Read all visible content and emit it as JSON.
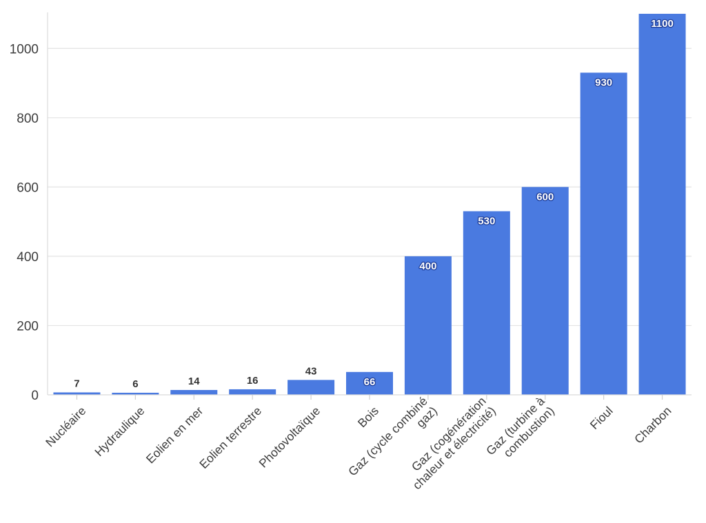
{
  "chart_data": {
    "type": "bar",
    "title": "",
    "xlabel": "",
    "ylabel": "",
    "categories": [
      "Nucléaire",
      "Hydraulique",
      "Eolien en mer",
      "Eolien terrestre",
      "Photovoltaïque",
      "Bois",
      "Gaz (cycle combiné gaz)",
      "Gaz (cogénération chaleur et électricité)",
      "Gaz (turbine à combustion)",
      "Fioul",
      "Charbon"
    ],
    "category_label_lines": [
      [
        "Nucléaire"
      ],
      [
        "Hydraulique"
      ],
      [
        "Eolien en mer"
      ],
      [
        "Eolien terrestre"
      ],
      [
        "Photovoltaïque"
      ],
      [
        "Bois"
      ],
      [
        "Gaz (cycle combiné",
        "gaz)"
      ],
      [
        "Gaz (cogénération",
        "chaleur et électricité)"
      ],
      [
        "Gaz (turbine à",
        "combustion)"
      ],
      [
        "Fioul"
      ],
      [
        "Charbon"
      ]
    ],
    "values": [
      7,
      6,
      14,
      16,
      43,
      66,
      400,
      530,
      600,
      930,
      1100
    ],
    "data_labels": [
      "7",
      "6",
      "14",
      "16",
      "43",
      "66",
      "400",
      "530",
      "600",
      "930",
      "1100"
    ],
    "yticks": [
      0,
      200,
      400,
      600,
      800,
      1000
    ],
    "ytick_labels": [
      "0",
      "200",
      "400",
      "600",
      "800",
      "1000"
    ],
    "ylim": [
      0,
      1100
    ],
    "grid": true,
    "legend": "none",
    "colors": {
      "bar": "#4a7ae0",
      "grid": "#e3e3e3",
      "label_dark": "#333333",
      "label_light": "#ffffff",
      "label_outline": "#1f3f9a"
    }
  }
}
